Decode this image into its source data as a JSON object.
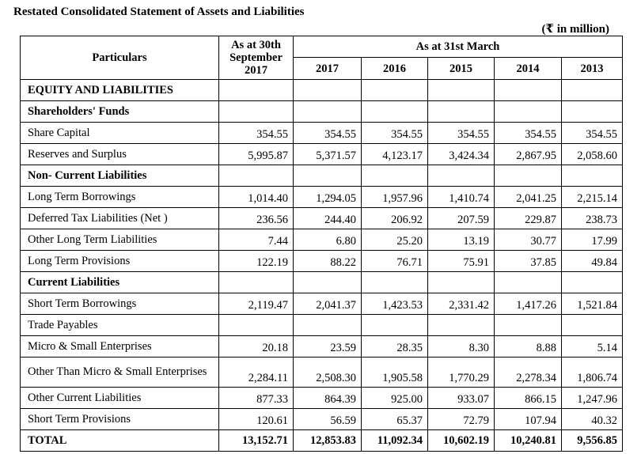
{
  "title": "Restated Consolidated Statement of Assets and Liabilities",
  "unit": "(₹ in million)",
  "header": {
    "particulars": "Particulars",
    "first_col": "As at 30th September 2017",
    "group": "As at 31st March",
    "years": [
      "2017",
      "2016",
      "2015",
      "2014",
      "2013"
    ]
  },
  "rows": [
    {
      "label": "EQUITY AND LIABILITIES",
      "type": "heading",
      "values": []
    },
    {
      "label": "Shareholders' Funds",
      "type": "heading",
      "values": []
    },
    {
      "label": "Share Capital",
      "values": [
        "354.55",
        "354.55",
        "354.55",
        "354.55",
        "354.55",
        "354.55"
      ]
    },
    {
      "label": "Reserves and Surplus",
      "values": [
        "5,995.87",
        "5,371.57",
        "4,123.17",
        "3,424.34",
        "2,867.95",
        "2,058.60"
      ]
    },
    {
      "label": "Non- Current Liabilities",
      "type": "heading",
      "values": []
    },
    {
      "label": "Long Term Borrowings",
      "values": [
        "1,014.40",
        "1,294.05",
        "1,957.96",
        "1,410.74",
        "2,041.25",
        "2,215.14"
      ]
    },
    {
      "label": "Deferred Tax Liabilities (Net )",
      "values": [
        "236.56",
        "244.40",
        "206.92",
        "207.59",
        "229.87",
        "238.73"
      ]
    },
    {
      "label": "Other Long Term Liabilities",
      "values": [
        "7.44",
        "6.80",
        "25.20",
        "13.19",
        "30.77",
        "17.99"
      ]
    },
    {
      "label": "Long Term Provisions",
      "values": [
        "122.19",
        "88.22",
        "76.71",
        "75.91",
        "37.85",
        "49.84"
      ]
    },
    {
      "label": "Current Liabilities",
      "type": "heading",
      "values": []
    },
    {
      "label": "Short Term Borrowings",
      "values": [
        "2,119.47",
        "2,041.37",
        "1,423.53",
        "2,331.42",
        "1,417.26",
        "1,521.84"
      ]
    },
    {
      "label": "Trade Payables",
      "values": []
    },
    {
      "label": "Micro & Small Enterprises",
      "values": [
        "20.18",
        "23.59",
        "28.35",
        "8.30",
        "8.88",
        "5.14"
      ]
    },
    {
      "label": "Other Than Micro & Small Enterprises",
      "type": "tall",
      "values": [
        "2,284.11",
        "2,508.30",
        "1,905.58",
        "1,770.29",
        "2,278.34",
        "1,806.74"
      ]
    },
    {
      "label": "Other Current Liabilities",
      "values": [
        "877.33",
        "864.39",
        "925.00",
        "933.07",
        "866.15",
        "1,247.96"
      ]
    },
    {
      "label": "Short Term Provisions",
      "values": [
        "120.61",
        "56.59",
        "65.37",
        "72.79",
        "107.94",
        "40.32"
      ]
    },
    {
      "label": "TOTAL",
      "type": "total",
      "values": [
        "13,152.71",
        "12,853.83",
        "11,092.34",
        "10,602.19",
        "10,240.81",
        "9,556.85"
      ]
    }
  ]
}
